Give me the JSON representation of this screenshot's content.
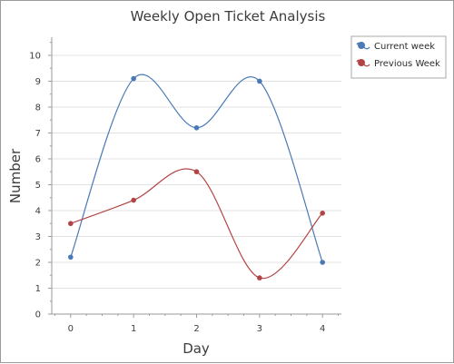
{
  "chart_data": {
    "type": "line",
    "title": "Weekly Open Ticket Analysis",
    "xlabel": "Day",
    "ylabel": "Number",
    "x": [
      0,
      1,
      2,
      3,
      4
    ],
    "xlim": [
      -0.3,
      4.3
    ],
    "ylim": [
      0,
      10.7
    ],
    "yticks": [
      0,
      1,
      2,
      3,
      4,
      5,
      6,
      7,
      8,
      9,
      10
    ],
    "grid": true,
    "legend_position": "top-right",
    "smooth": true,
    "series": [
      {
        "name": "Current week",
        "color": "#4a7ab5",
        "values": [
          2.2,
          9.1,
          7.2,
          9.0,
          2.0
        ]
      },
      {
        "name": "Previous Week",
        "color": "#b34445",
        "values": [
          3.5,
          4.4,
          5.5,
          1.4,
          3.9
        ]
      }
    ]
  }
}
